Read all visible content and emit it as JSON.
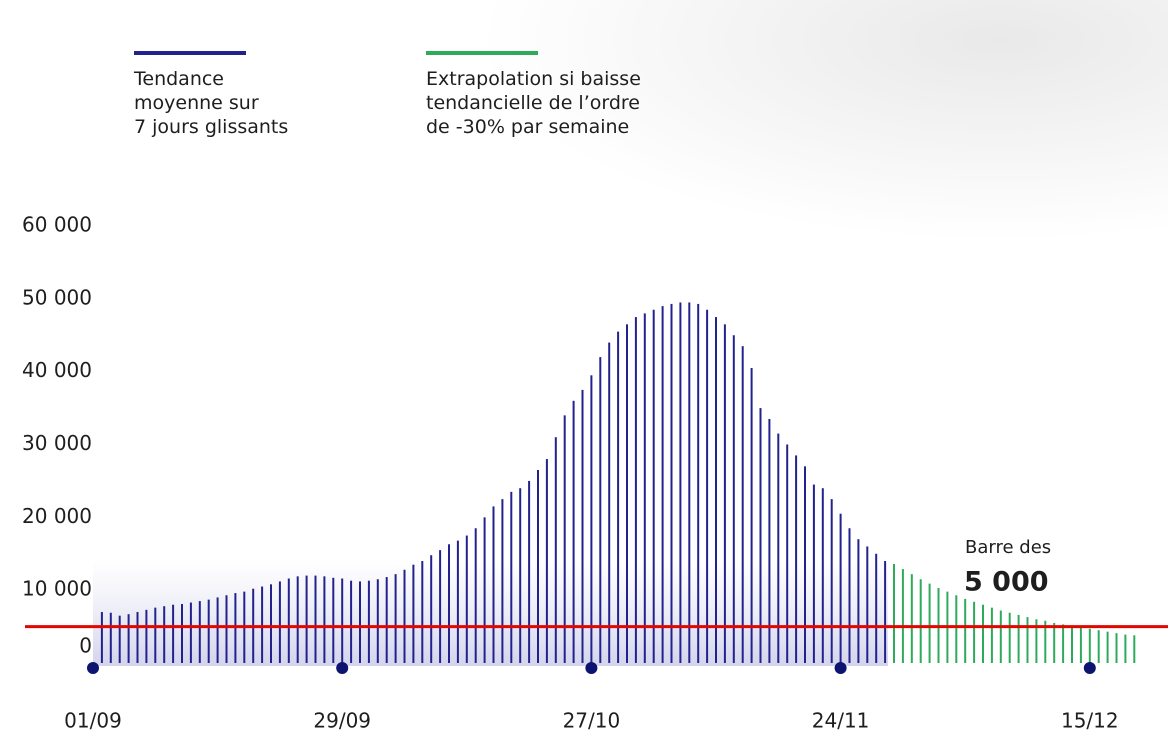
{
  "chart_data": {
    "type": "bar",
    "categories": [
      "01/09",
      null,
      null,
      null,
      null,
      null,
      null,
      null,
      null,
      null,
      null,
      null,
      null,
      null,
      null,
      null,
      null,
      null,
      null,
      null,
      null,
      null,
      null,
      null,
      null,
      null,
      null,
      null,
      "29/09",
      null,
      null,
      null,
      null,
      null,
      null,
      null,
      null,
      null,
      null,
      null,
      null,
      null,
      null,
      null,
      null,
      null,
      null,
      null,
      null,
      null,
      null,
      null,
      null,
      null,
      null,
      null,
      "27/10",
      null,
      null,
      null,
      null,
      null,
      null,
      null,
      null,
      null,
      null,
      null,
      null,
      null,
      null,
      null,
      null,
      null,
      null,
      null,
      null,
      null,
      null,
      null,
      null,
      null,
      null,
      null,
      "24/11",
      null,
      null,
      null,
      null,
      null,
      null,
      null,
      null,
      null,
      null,
      null,
      null,
      null,
      null,
      null,
      null,
      null,
      null,
      null,
      null,
      null,
      null,
      null,
      null,
      null,
      null,
      null,
      "15/12",
      null,
      null,
      null,
      null,
      null
    ],
    "series": [
      {
        "name": "Tendance\nmoyenne sur\n7 jours glissants",
        "color": "#22228f",
        "values": [
          null,
          7000,
          6900,
          6500,
          6700,
          7000,
          7300,
          7600,
          7800,
          8000,
          8100,
          8300,
          8500,
          8700,
          9000,
          9300,
          9600,
          9800,
          10200,
          10500,
          10800,
          11200,
          11600,
          11900,
          12000,
          12000,
          11900,
          11700,
          11600,
          11300,
          11200,
          11300,
          11500,
          11800,
          12200,
          12800,
          13500,
          14000,
          14800,
          15500,
          16300,
          16800,
          17500,
          18500,
          20000,
          21500,
          22500,
          23500,
          24000,
          25000,
          26500,
          28000,
          31000,
          34000,
          36000,
          37500,
          39500,
          42000,
          44000,
          45500,
          46500,
          47500,
          48000,
          48500,
          49000,
          49300,
          49500,
          49500,
          49300,
          48500,
          47500,
          46500,
          45000,
          43500,
          40500,
          35000,
          33500,
          31500,
          30000,
          28500,
          27000,
          24500,
          24000,
          22500,
          20500,
          18500,
          17000,
          16000,
          15000,
          14000,
          null,
          null,
          null,
          null,
          null,
          null,
          null,
          null,
          null,
          null,
          null,
          null,
          null,
          null,
          null,
          null,
          null,
          null,
          null,
          null,
          null,
          null,
          null,
          null,
          null,
          null,
          null,
          null
        ]
      },
      {
        "name": "Extrapolation si baisse\ntendancielle de l’ordre\nde -30% par semaine",
        "color": "#2eaa5c",
        "values": [
          null,
          null,
          null,
          null,
          null,
          null,
          null,
          null,
          null,
          null,
          null,
          null,
          null,
          null,
          null,
          null,
          null,
          null,
          null,
          null,
          null,
          null,
          null,
          null,
          null,
          null,
          null,
          null,
          null,
          null,
          null,
          null,
          null,
          null,
          null,
          null,
          null,
          null,
          null,
          null,
          null,
          null,
          null,
          null,
          null,
          null,
          null,
          null,
          null,
          null,
          null,
          null,
          null,
          null,
          null,
          null,
          null,
          null,
          null,
          null,
          null,
          null,
          null,
          null,
          null,
          null,
          null,
          null,
          null,
          null,
          null,
          null,
          null,
          null,
          null,
          null,
          null,
          null,
          null,
          null,
          null,
          null,
          null,
          null,
          null,
          null,
          null,
          null,
          null,
          null,
          13600,
          12900,
          12200,
          11500,
          10900,
          10300,
          9800,
          9300,
          8800,
          8400,
          8000,
          7600,
          7200,
          6900,
          6600,
          6300,
          6000,
          5800,
          5500,
          5300,
          5100,
          4900,
          4700,
          4500,
          4300,
          4100,
          3900,
          3800
        ]
      }
    ],
    "ylim": [
      0,
      60000
    ],
    "yticks": [
      0,
      {
        "value": 10000,
        "label": "10 000"
      },
      {
        "value": 20000,
        "label": "20 000"
      },
      {
        "value": 30000,
        "label": "30 000"
      },
      {
        "value": 40000,
        "label": "40 000"
      },
      {
        "value": 50000,
        "label": "50 000"
      },
      {
        "value": 60000,
        "label": "60 000"
      }
    ],
    "grid": false,
    "threshold": {
      "value": 5000,
      "color": "#e10600",
      "caption": "Barre des",
      "label": "5 000"
    }
  }
}
